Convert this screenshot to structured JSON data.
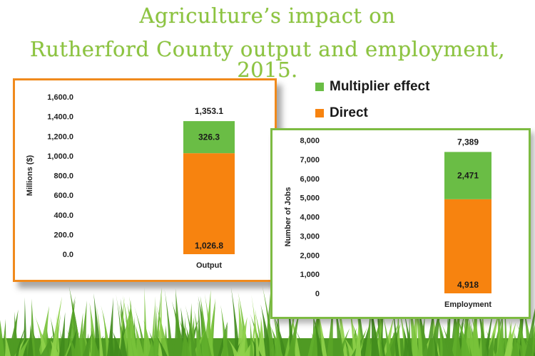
{
  "title": {
    "line1": "Agriculture’s impact on",
    "line2": "Rutherford County output and employment, 2015."
  },
  "legend": [
    {
      "label": "Multiplier effect",
      "color": "#6abd45"
    },
    {
      "label": "Direct",
      "color": "#f7830f"
    }
  ],
  "chart_data": [
    {
      "type": "bar",
      "stacked": true,
      "categories": [
        "Output"
      ],
      "series": [
        {
          "name": "Direct",
          "values": [
            1026.8
          ],
          "labels": [
            "1,026.8"
          ],
          "color": "#f7830f"
        },
        {
          "name": "Multiplier effect",
          "values": [
            326.3
          ],
          "labels": [
            "326.3"
          ],
          "color": "#6abd45"
        }
      ],
      "total_labels": [
        "1,353.1"
      ],
      "ylabel": "Millions ($)",
      "ylim": [
        0,
        1600
      ],
      "yticks": [
        "0.0",
        "200.0",
        "400.0",
        "600.0",
        "800.0",
        "1,000.0",
        "1,200.0",
        "1,400.0",
        "1,600.0"
      ],
      "grid": false
    },
    {
      "type": "bar",
      "stacked": true,
      "categories": [
        "Employment"
      ],
      "series": [
        {
          "name": "Direct",
          "values": [
            4918
          ],
          "labels": [
            "4,918"
          ],
          "color": "#f7830f"
        },
        {
          "name": "Multiplier effect",
          "values": [
            2471
          ],
          "labels": [
            "2,471"
          ],
          "color": "#6abd45"
        }
      ],
      "total_labels": [
        "7,389"
      ],
      "ylabel": "Number of Jobs",
      "ylim": [
        0,
        8000
      ],
      "yticks": [
        "0",
        "1,000",
        "2,000",
        "3,000",
        "4,000",
        "5,000",
        "6,000",
        "7,000",
        "8,000"
      ],
      "grid": false
    }
  ]
}
